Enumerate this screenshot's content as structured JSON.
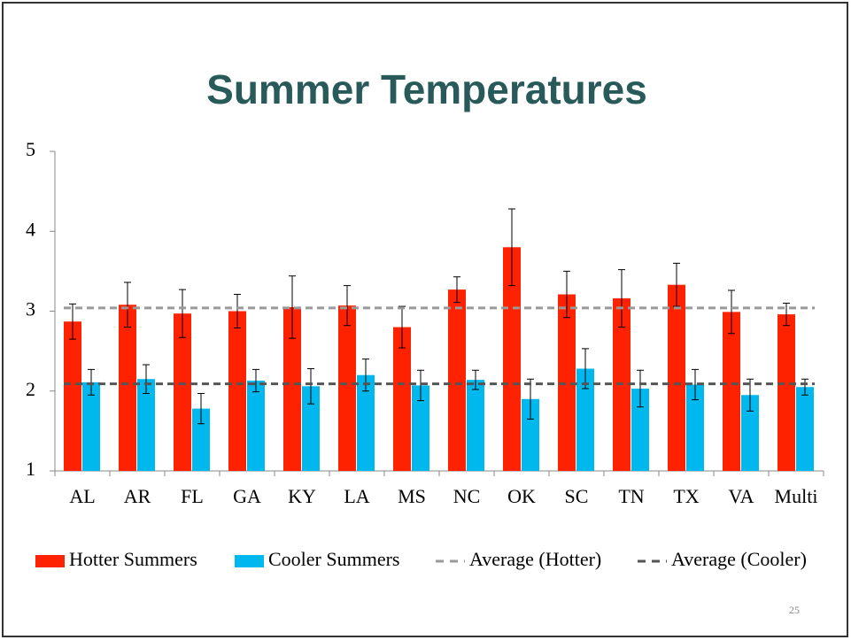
{
  "chart_data": {
    "type": "bar",
    "title": "Summer Temperatures",
    "categories": [
      "AL",
      "AR",
      "FL",
      "GA",
      "KY",
      "LA",
      "MS",
      "NC",
      "OK",
      "SC",
      "TN",
      "TX",
      "VA",
      "Multi"
    ],
    "series": [
      {
        "name": "Hotter Summers",
        "color": "#ff2200",
        "values": [
          2.87,
          3.08,
          2.97,
          3.0,
          3.05,
          3.07,
          2.8,
          3.27,
          3.8,
          3.21,
          3.16,
          3.33,
          2.99,
          2.96
        ],
        "errors": [
          0.22,
          0.28,
          0.3,
          0.21,
          0.39,
          0.25,
          0.26,
          0.16,
          0.48,
          0.29,
          0.36,
          0.27,
          0.27,
          0.14
        ]
      },
      {
        "name": "Cooler Summers",
        "color": "#00b8ee",
        "values": [
          2.11,
          2.15,
          1.78,
          2.13,
          2.06,
          2.2,
          2.07,
          2.14,
          1.9,
          2.28,
          2.03,
          2.08,
          1.95,
          2.05
        ],
        "errors": [
          0.16,
          0.18,
          0.19,
          0.14,
          0.22,
          0.2,
          0.19,
          0.12,
          0.25,
          0.25,
          0.23,
          0.19,
          0.2,
          0.1
        ]
      }
    ],
    "reference_lines": [
      {
        "name": "Average (Hotter)",
        "color": "#999999",
        "value": 3.04
      },
      {
        "name": "Average (Cooler)",
        "color": "#555555",
        "value": 2.09
      }
    ],
    "ylim": [
      1,
      5
    ],
    "yticks": [
      1,
      2,
      3,
      4,
      5
    ],
    "page_number": "25"
  }
}
